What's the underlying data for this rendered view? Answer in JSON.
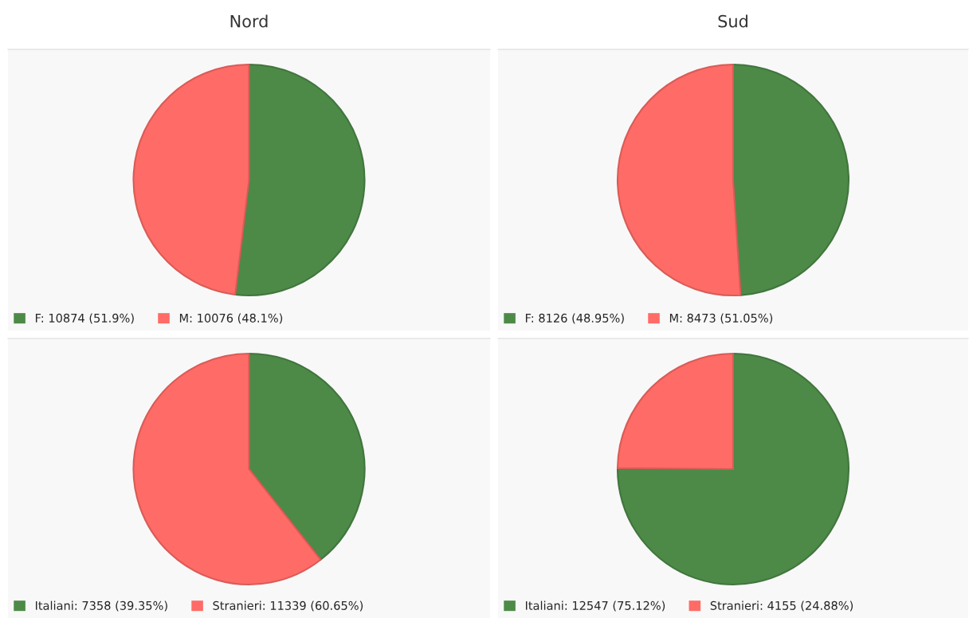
{
  "chart_data": [
    {
      "type": "pie",
      "title": "Nord",
      "categories": [
        "F: 10874 (51.9%)",
        "M: 10076 (48.1%)"
      ],
      "values": [
        10874,
        10076
      ],
      "colors": [
        "#4d8a48",
        "#ff6b66"
      ],
      "legend": "bottom left"
    },
    {
      "type": "pie",
      "title": "Sud",
      "categories": [
        "F: 8126 (48.95%)",
        "M: 8473 (51.05%)"
      ],
      "values": [
        8126,
        8473
      ],
      "colors": [
        "#4d8a48",
        "#ff6b66"
      ],
      "legend": "bottom left"
    },
    {
      "type": "pie",
      "categories": [
        "Italiani: 7358 (39.35%)",
        "Stranieri: 11339 (60.65%)"
      ],
      "values": [
        7358,
        11339
      ],
      "colors": [
        "#4d8a48",
        "#ff6b66"
      ],
      "legend": "bottom left"
    },
    {
      "type": "pie",
      "categories": [
        "Italiani: 12547 (75.12%)",
        "Stranieri: 4155 (24.88%)"
      ],
      "values": [
        12547,
        4155
      ],
      "colors": [
        "#4d8a48",
        "#ff6b66"
      ],
      "legend": "bottom left"
    }
  ]
}
